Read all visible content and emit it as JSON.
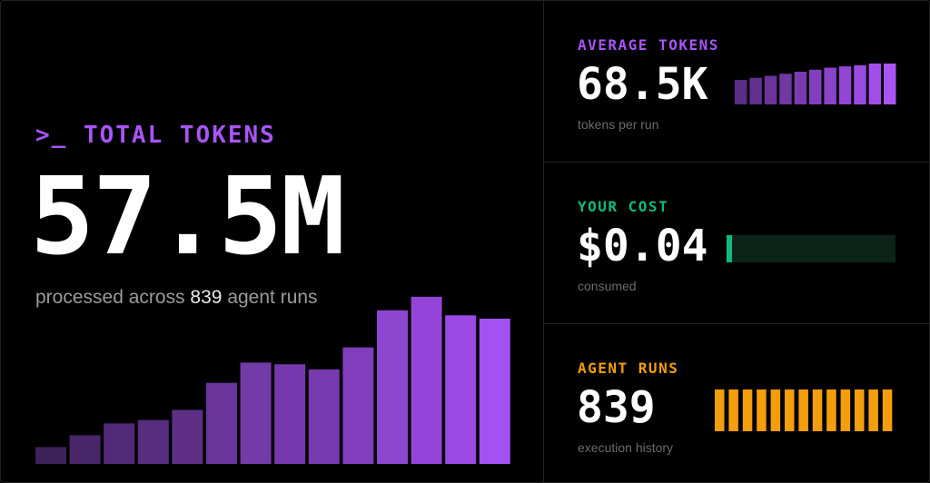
{
  "total": {
    "prompt": ">_",
    "label": "TOTAL TOKENS",
    "value": "57.5M",
    "sub_prefix": "processed across",
    "runs": "839",
    "sub_suffix": "agent runs"
  },
  "cards": [
    {
      "label": "AVERAGE TOKENS",
      "value": "68.5K",
      "sub": "tokens per run"
    },
    {
      "label": "YOUR COST",
      "value": "$0.04",
      "sub": "consumed"
    },
    {
      "label": "AGENT RUNS",
      "value": "839",
      "sub": "execution history"
    }
  ],
  "colors": {
    "purple": "#a855f7",
    "green": "#10b981",
    "orange": "#f59e0b"
  },
  "chart_data": {
    "type": "bar",
    "values": [
      0.1,
      0.17,
      0.24,
      0.26,
      0.32,
      0.48,
      0.6,
      0.59,
      0.56,
      0.69,
      0.91,
      0.99,
      0.88,
      0.86
    ],
    "colors": [
      "#3e2158",
      "#492669",
      "#532a77",
      "#582d80",
      "#5d2f85",
      "#6a349a",
      "#733ba8",
      "#7639ad",
      "#773aaf",
      "#823dbd",
      "#8e46d0",
      "#9444d8",
      "#9b49e4",
      "#a352f2"
    ]
  },
  "avg_bars": {
    "values": [
      0.6,
      0.65,
      0.7,
      0.75,
      0.8,
      0.85,
      0.9,
      0.93,
      0.96,
      1.0,
      1.0
    ],
    "colors": [
      "#5b2d86",
      "#62308f",
      "#6b3499",
      "#7137a3",
      "#7a3bb0",
      "#823fbd",
      "#8a44c8",
      "#9247d4",
      "#9a4ae0",
      "#a24ee9",
      "#a855f7"
    ]
  },
  "cost_level": 0.04,
  "run_bars": {
    "count": 13
  }
}
